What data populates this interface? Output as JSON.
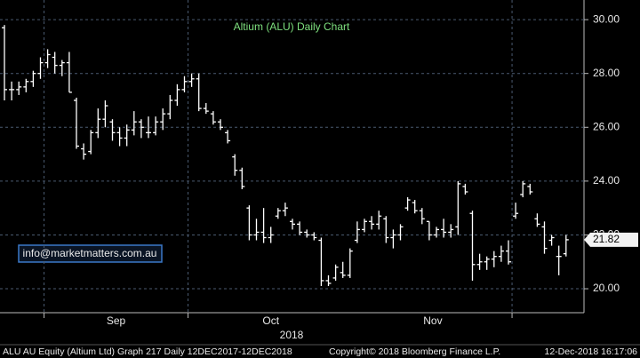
{
  "chart_data": {
    "type": "ohlc",
    "title": "Altium (ALU) Daily Chart",
    "source_note": "info@marketmatters.com.au",
    "year_label": "2018",
    "footer": [
      "ALU AU Equity (Altium Ltd) Graph 217  Daily 12DEC2017-12DEC2018",
      "Copyright© 2018 Bloomberg Finance L.P.",
      "12-Dec-2018 16:17:06"
    ],
    "color": "#ffffff",
    "ylim": [
      19.11,
      30.73
    ],
    "yticks": [
      {
        "value": 20,
        "label": "20.00"
      },
      {
        "value": 22,
        "label": "22.00"
      },
      {
        "value": 24,
        "label": "24.00"
      },
      {
        "value": 26,
        "label": "26.00"
      },
      {
        "value": 28,
        "label": "28.00"
      },
      {
        "value": 30,
        "label": "30.00"
      }
    ],
    "grid": true,
    "months": [
      {
        "label": "Sep",
        "from": 6,
        "to": 26
      },
      {
        "label": "Oct",
        "from": 26,
        "to": 49
      },
      {
        "label": "Nov",
        "from": 49,
        "to": 71
      }
    ],
    "dividers": [
      6,
      26,
      71
    ],
    "open": [
      29.7,
      27.4,
      27.4,
      27.5,
      27.7,
      28.0,
      28.4,
      28.6,
      28.3,
      28.4,
      27.0,
      25.2,
      25.1,
      25.8,
      26.3,
      26.2,
      25.8,
      25.6,
      25.9,
      26.2,
      25.8,
      25.8,
      26.2,
      26.5,
      27.0,
      27.4,
      27.7,
      27.8,
      26.7,
      26.5,
      26.2,
      25.8,
      24.9,
      24.4,
      23.0,
      22.0,
      22.1,
      21.9,
      22.7,
      22.9,
      22.5,
      22.4,
      22.1,
      22.0,
      21.8,
      20.3,
      20.4,
      20.6,
      20.5,
      21.8,
      22.2,
      22.5,
      22.4,
      22.6,
      21.9,
      22.0,
      23.0,
      23.2,
      22.9,
      22.5,
      22.0,
      22.2,
      22.1,
      22.3,
      23.8,
      22.8,
      20.9,
      21.0,
      21.1,
      21.2,
      21.4,
      22.7,
      23.5,
      23.8,
      22.6,
      22.3,
      21.8,
      21.2,
      21.3
    ],
    "high": [
      29.8,
      27.7,
      27.7,
      27.8,
      28.1,
      28.6,
      28.9,
      28.8,
      28.5,
      28.8,
      27.1,
      25.4,
      25.9,
      26.7,
      27.0,
      26.3,
      26.0,
      26.1,
      26.6,
      26.3,
      26.4,
      26.4,
      26.7,
      27.2,
      27.6,
      27.9,
      28.0,
      28.0,
      26.9,
      26.6,
      26.3,
      25.9,
      25.0,
      24.5,
      23.1,
      22.6,
      23.0,
      22.3,
      23.0,
      23.2,
      22.6,
      22.5,
      22.2,
      22.1,
      21.9,
      20.5,
      20.9,
      21.0,
      21.5,
      22.5,
      22.6,
      22.7,
      22.9,
      22.7,
      22.2,
      22.4,
      23.4,
      23.3,
      23.0,
      22.5,
      22.3,
      22.6,
      22.4,
      24.0,
      23.9,
      22.9,
      21.3,
      21.2,
      21.4,
      21.6,
      21.8,
      23.2,
      24.0,
      23.9,
      22.8,
      22.5,
      22.0,
      21.6,
      22.0
    ],
    "low": [
      27.0,
      27.0,
      27.2,
      27.3,
      27.5,
      27.8,
      28.2,
      28.0,
      27.9,
      27.3,
      25.2,
      24.8,
      25.0,
      25.6,
      26.0,
      25.5,
      25.3,
      25.3,
      25.7,
      25.6,
      25.6,
      25.7,
      25.9,
      26.3,
      26.8,
      27.3,
      27.5,
      26.6,
      26.5,
      26.1,
      25.9,
      25.4,
      24.2,
      23.7,
      21.8,
      21.8,
      21.7,
      21.7,
      22.6,
      22.7,
      22.2,
      22.0,
      21.9,
      21.8,
      20.1,
      20.1,
      20.3,
      20.4,
      20.4,
      21.7,
      22.1,
      22.2,
      22.2,
      21.7,
      21.5,
      21.8,
      22.9,
      22.8,
      22.4,
      21.8,
      21.9,
      21.9,
      21.9,
      22.0,
      23.5,
      20.3,
      20.7,
      20.7,
      20.8,
      21.0,
      20.9,
      22.6,
      23.4,
      23.5,
      22.3,
      21.3,
      21.6,
      20.5,
      21.2
    ],
    "close": [
      27.4,
      27.4,
      27.5,
      27.7,
      28.0,
      28.4,
      28.7,
      28.3,
      28.4,
      27.3,
      25.3,
      25.0,
      25.8,
      26.3,
      26.8,
      25.8,
      25.6,
      25.9,
      26.2,
      26.0,
      25.8,
      26.2,
      26.5,
      27.0,
      27.4,
      27.7,
      27.8,
      26.7,
      26.6,
      26.2,
      26.0,
      25.5,
      24.4,
      23.8,
      22.0,
      22.1,
      21.9,
      22.0,
      22.9,
      23.0,
      22.4,
      22.1,
      22.0,
      21.9,
      20.3,
      20.2,
      20.8,
      20.5,
      21.4,
      22.2,
      22.5,
      22.4,
      22.7,
      21.9,
      22.0,
      22.3,
      23.3,
      22.9,
      22.6,
      22.0,
      22.2,
      22.1,
      22.2,
      23.9,
      23.6,
      20.9,
      21.0,
      21.1,
      21.2,
      21.4,
      21.0,
      22.8,
      23.9,
      23.6,
      22.4,
      21.5,
      21.9,
      21.2,
      21.82
    ]
  }
}
